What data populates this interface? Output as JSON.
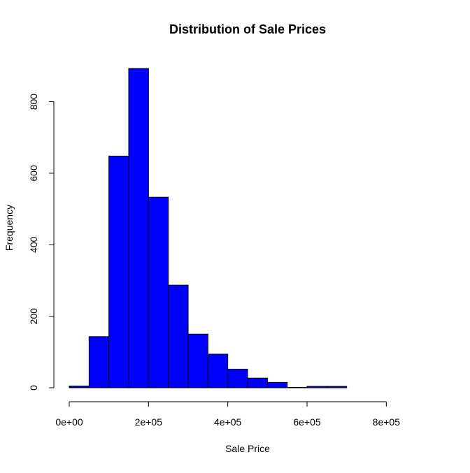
{
  "chart_data": {
    "type": "bar",
    "title": "Distribution of Sale Prices",
    "xlabel": "Sale Price",
    "ylabel": "Frequency",
    "bins": [
      {
        "start": 0,
        "end": 50000,
        "count": 5
      },
      {
        "start": 50000,
        "end": 100000,
        "count": 143
      },
      {
        "start": 100000,
        "end": 150000,
        "count": 648
      },
      {
        "start": 150000,
        "end": 200000,
        "count": 893
      },
      {
        "start": 200000,
        "end": 250000,
        "count": 533
      },
      {
        "start": 250000,
        "end": 300000,
        "count": 287
      },
      {
        "start": 300000,
        "end": 350000,
        "count": 150
      },
      {
        "start": 350000,
        "end": 400000,
        "count": 94
      },
      {
        "start": 400000,
        "end": 450000,
        "count": 52
      },
      {
        "start": 450000,
        "end": 500000,
        "count": 27
      },
      {
        "start": 500000,
        "end": 550000,
        "count": 15
      },
      {
        "start": 550000,
        "end": 600000,
        "count": 1
      },
      {
        "start": 600000,
        "end": 650000,
        "count": 4
      },
      {
        "start": 650000,
        "end": 700000,
        "count": 4
      },
      {
        "start": 700000,
        "end": 750000,
        "count": 0
      },
      {
        "start": 750000,
        "end": 800000,
        "count": 0
      },
      {
        "start": 800000,
        "end": 850000,
        "count": 0
      },
      {
        "start": 850000,
        "end": 900000,
        "count": 0
      }
    ],
    "x_ticks": [
      {
        "value": 0,
        "label": "0e+00"
      },
      {
        "value": 200000,
        "label": "2e+05"
      },
      {
        "value": 400000,
        "label": "4e+05"
      },
      {
        "value": 600000,
        "label": "6e+05"
      },
      {
        "value": 800000,
        "label": "8e+05"
      }
    ],
    "y_ticks": [
      {
        "value": 0,
        "label": "0"
      },
      {
        "value": 200,
        "label": "200"
      },
      {
        "value": 400,
        "label": "400"
      },
      {
        "value": 600,
        "label": "600"
      },
      {
        "value": 800,
        "label": "800"
      }
    ],
    "xlim": [
      0,
      900000
    ],
    "ylim": [
      0,
      893
    ],
    "bar_color": "#0000FF",
    "edge_color": "#000000",
    "grid": false,
    "legend": false
  }
}
